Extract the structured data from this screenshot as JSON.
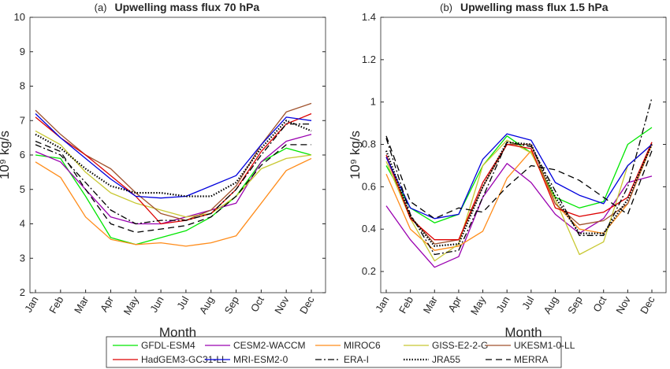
{
  "legend": [
    {
      "name": "GFDL-ESM4",
      "color": "#00e600",
      "dash": "solid"
    },
    {
      "name": "CESM2-WACCM",
      "color": "#9a00b0",
      "dash": "solid"
    },
    {
      "name": "MIROC6",
      "color": "#ff8c1a",
      "dash": "solid"
    },
    {
      "name": "GISS-E2-2-G",
      "color": "#c8c832",
      "dash": "solid"
    },
    {
      "name": "UKESM1-0-LL",
      "color": "#a0522d",
      "dash": "solid"
    },
    {
      "name": "HadGEM3-GC31-LL",
      "color": "#dd0000",
      "dash": "solid"
    },
    {
      "name": "MRI-ESM2-0",
      "color": "#0000dd",
      "dash": "solid"
    },
    {
      "name": "ERA-I",
      "color": "#000000",
      "dash": "dashdot"
    },
    {
      "name": "JRA55",
      "color": "#000000",
      "dash": "dotted"
    },
    {
      "name": "MERRA",
      "color": "#000000",
      "dash": "dashed"
    }
  ],
  "chart_data": [
    {
      "type": "line",
      "panel": "(a)",
      "title": "Upwelling mass flux 70 hPa",
      "xlabel": "Month",
      "ylabel": "10⁹ kg/s",
      "categories": [
        "Jan",
        "Feb",
        "Mar",
        "Apr",
        "May",
        "Jun",
        "Jul",
        "Aug",
        "Sep",
        "Oct",
        "Nov",
        "Dec"
      ],
      "ylim": [
        2,
        10
      ],
      "yticks": [
        2,
        3,
        4,
        5,
        6,
        7,
        8,
        9,
        10
      ],
      "series": [
        {
          "values": [
            6.0,
            5.9,
            4.8,
            3.6,
            3.4,
            3.6,
            3.8,
            4.2,
            4.8,
            5.8,
            6.2,
            6.0
          ]
        },
        {
          "values": [
            6.1,
            5.8,
            5.0,
            4.2,
            4.0,
            4.0,
            4.2,
            4.4,
            4.6,
            5.8,
            6.4,
            6.6
          ]
        },
        {
          "values": [
            5.8,
            5.35,
            4.2,
            3.55,
            3.4,
            3.45,
            3.35,
            3.45,
            3.65,
            4.6,
            5.55,
            5.9
          ]
        },
        {
          "values": [
            6.7,
            6.3,
            5.5,
            4.9,
            4.6,
            4.4,
            4.2,
            4.3,
            4.8,
            5.6,
            5.9,
            6.0
          ]
        },
        {
          "values": [
            7.3,
            6.6,
            6.0,
            5.6,
            4.9,
            4.3,
            4.1,
            4.4,
            5.1,
            6.3,
            7.25,
            7.5
          ]
        },
        {
          "values": [
            7.1,
            6.5,
            6.0,
            5.4,
            4.8,
            4.0,
            4.1,
            4.3,
            5.0,
            6.1,
            6.9,
            7.2
          ]
        },
        {
          "values": [
            7.2,
            6.5,
            5.9,
            5.3,
            4.8,
            4.75,
            4.8,
            5.1,
            5.4,
            6.3,
            7.1,
            7.0
          ]
        },
        {
          "values": [
            6.3,
            6.0,
            5.2,
            4.4,
            4.0,
            4.1,
            4.1,
            4.3,
            5.0,
            6.0,
            6.9,
            6.9
          ]
        },
        {
          "values": [
            6.6,
            6.2,
            5.6,
            5.1,
            4.9,
            4.9,
            4.8,
            4.8,
            5.2,
            6.2,
            7.0,
            6.7
          ]
        },
        {
          "values": [
            6.4,
            6.1,
            5.0,
            4.0,
            3.75,
            3.85,
            3.95,
            4.2,
            4.8,
            5.7,
            6.3,
            6.3
          ]
        }
      ]
    },
    {
      "type": "line",
      "panel": "(b)",
      "title": "Upwelling mass flux 1.5 hPa",
      "xlabel": "Month",
      "ylabel": "10⁹ kg/s",
      "categories": [
        "Jan",
        "Feb",
        "Mar",
        "Apr",
        "May",
        "Jun",
        "Jul",
        "Aug",
        "Sep",
        "Oct",
        "Nov",
        "Dec"
      ],
      "ylim": [
        0.1,
        1.4
      ],
      "yticks": [
        0.2,
        0.4,
        0.6,
        0.8,
        1,
        1.2,
        1.4
      ],
      "series": [
        {
          "values": [
            0.7,
            0.5,
            0.43,
            0.47,
            0.7,
            0.84,
            0.76,
            0.55,
            0.5,
            0.53,
            0.8,
            0.88
          ]
        },
        {
          "values": [
            0.51,
            0.35,
            0.22,
            0.27,
            0.55,
            0.71,
            0.62,
            0.47,
            0.38,
            0.45,
            0.62,
            0.65
          ]
        },
        {
          "values": [
            0.66,
            0.4,
            0.3,
            0.32,
            0.39,
            0.64,
            0.77,
            0.52,
            0.4,
            0.38,
            0.52,
            0.8
          ]
        },
        {
          "values": [
            0.72,
            0.45,
            0.25,
            0.33,
            0.7,
            0.82,
            0.76,
            0.54,
            0.28,
            0.34,
            0.7,
            0.8
          ]
        },
        {
          "values": [
            0.74,
            0.46,
            0.33,
            0.35,
            0.6,
            0.8,
            0.8,
            0.52,
            0.42,
            0.44,
            0.52,
            0.81
          ]
        },
        {
          "values": [
            0.75,
            0.45,
            0.35,
            0.35,
            0.62,
            0.8,
            0.78,
            0.5,
            0.46,
            0.48,
            0.55,
            0.81
          ]
        },
        {
          "values": [
            0.74,
            0.5,
            0.45,
            0.47,
            0.73,
            0.85,
            0.82,
            0.62,
            0.56,
            0.52,
            0.7,
            0.8
          ]
        },
        {
          "values": [
            0.83,
            0.47,
            0.28,
            0.3,
            0.55,
            0.81,
            0.79,
            0.58,
            0.37,
            0.37,
            0.6,
            1.02
          ]
        },
        {
          "values": [
            0.77,
            0.46,
            0.32,
            0.33,
            0.6,
            0.81,
            0.8,
            0.55,
            0.38,
            0.38,
            0.54,
            0.8
          ]
        },
        {
          "values": [
            0.84,
            0.53,
            0.45,
            0.5,
            0.48,
            0.6,
            0.7,
            0.68,
            0.63,
            0.55,
            0.47,
            0.77
          ]
        }
      ]
    }
  ]
}
